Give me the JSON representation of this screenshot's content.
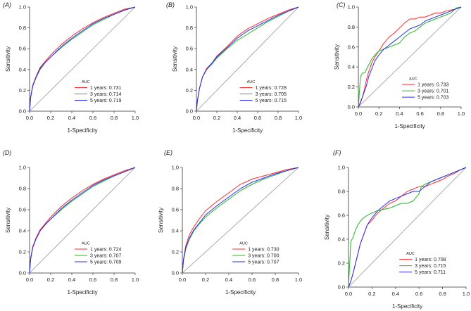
{
  "colors": {
    "y1": "#ff2a2a",
    "y3": "#22bb22",
    "y5": "#2a2aff",
    "diag": "#999999",
    "axis": "#333333"
  },
  "chart_data": [
    {
      "type": "line",
      "panel_label": "(A)",
      "xlabel": "1-Specificity",
      "ylabel": "Sensitivity",
      "xlim": [
        0,
        1
      ],
      "ylim": [
        0,
        1
      ],
      "xticks": [
        "0.0",
        "0.2",
        "0.4",
        "0.6",
        "0.8",
        "1.0"
      ],
      "yticks": [
        "0.0",
        "0.2",
        "0.4",
        "0.6",
        "0.8",
        "1.0"
      ],
      "legend_title": "AUC",
      "legend_position": "bottom-right",
      "series": [
        {
          "name": "1 years: 0.731",
          "color": "y1",
          "x": [
            0,
            0.01,
            0.03,
            0.06,
            0.1,
            0.15,
            0.2,
            0.3,
            0.4,
            0.5,
            0.6,
            0.7,
            0.8,
            0.9,
            1.0
          ],
          "y": [
            0,
            0.14,
            0.25,
            0.33,
            0.42,
            0.48,
            0.54,
            0.64,
            0.72,
            0.79,
            0.85,
            0.9,
            0.94,
            0.98,
            1.0
          ]
        },
        {
          "name": "3 years: 0.714",
          "color": "y3",
          "x": [
            0,
            0.01,
            0.03,
            0.06,
            0.1,
            0.15,
            0.2,
            0.3,
            0.4,
            0.5,
            0.6,
            0.7,
            0.8,
            0.9,
            1.0
          ],
          "y": [
            0,
            0.13,
            0.24,
            0.32,
            0.4,
            0.47,
            0.52,
            0.61,
            0.69,
            0.76,
            0.83,
            0.88,
            0.93,
            0.97,
            1.0
          ]
        },
        {
          "name": "5 years: 0.719",
          "color": "y5",
          "x": [
            0,
            0.01,
            0.03,
            0.06,
            0.1,
            0.15,
            0.2,
            0.3,
            0.4,
            0.5,
            0.6,
            0.7,
            0.8,
            0.9,
            1.0
          ],
          "y": [
            0,
            0.13,
            0.24,
            0.32,
            0.41,
            0.47,
            0.52,
            0.62,
            0.7,
            0.77,
            0.84,
            0.89,
            0.93,
            0.97,
            1.0
          ]
        }
      ]
    },
    {
      "type": "line",
      "panel_label": "(B)",
      "xlabel": "1-Specificity",
      "ylabel": "Sensitivity",
      "xlim": [
        0,
        1
      ],
      "ylim": [
        0,
        1
      ],
      "xticks": [
        "0.0",
        "0.2",
        "0.4",
        "0.6",
        "0.8",
        "1.0"
      ],
      "yticks": [
        "0.0",
        "0.2",
        "0.4",
        "0.6",
        "0.8",
        "1.0"
      ],
      "legend_title": "AUC",
      "legend_position": "bottom-right",
      "series": [
        {
          "name": "1 years: 0.728",
          "color": "y1",
          "x": [
            0,
            0.01,
            0.03,
            0.06,
            0.1,
            0.15,
            0.2,
            0.3,
            0.4,
            0.5,
            0.6,
            0.7,
            0.8,
            0.9,
            1.0
          ],
          "y": [
            0,
            0.1,
            0.22,
            0.33,
            0.41,
            0.46,
            0.53,
            0.62,
            0.72,
            0.79,
            0.84,
            0.89,
            0.93,
            0.97,
            1.0
          ]
        },
        {
          "name": "3 years: 0.705",
          "color": "y3",
          "x": [
            0,
            0.01,
            0.03,
            0.06,
            0.1,
            0.15,
            0.2,
            0.3,
            0.4,
            0.5,
            0.6,
            0.7,
            0.8,
            0.9,
            1.0
          ],
          "y": [
            0,
            0.1,
            0.22,
            0.33,
            0.4,
            0.45,
            0.51,
            0.6,
            0.68,
            0.74,
            0.8,
            0.86,
            0.91,
            0.96,
            1.0
          ]
        },
        {
          "name": "5 years: 0.715",
          "color": "y5",
          "x": [
            0,
            0.01,
            0.03,
            0.06,
            0.1,
            0.15,
            0.2,
            0.3,
            0.4,
            0.5,
            0.6,
            0.7,
            0.8,
            0.9,
            1.0
          ],
          "y": [
            0,
            0.1,
            0.22,
            0.33,
            0.4,
            0.46,
            0.52,
            0.61,
            0.7,
            0.77,
            0.82,
            0.87,
            0.92,
            0.96,
            1.0
          ]
        }
      ]
    },
    {
      "type": "line",
      "panel_label": "(C)",
      "xlabel": "1-Specificity",
      "ylabel": "Sensitivity",
      "xlim": [
        0,
        1
      ],
      "ylim": [
        0,
        1
      ],
      "xticks": [
        "0.0",
        "0.2",
        "0.4",
        "0.6",
        "0.8",
        "1.0"
      ],
      "yticks": [
        "0.0",
        "0.2",
        "0.4",
        "0.6",
        "0.8",
        "1.0"
      ],
      "legend_title": "AUC",
      "legend_position": "bottom-right",
      "series": [
        {
          "name": "1 years: 0.733",
          "color": "y1",
          "x": [
            0,
            0.02,
            0.04,
            0.06,
            0.08,
            0.1,
            0.13,
            0.16,
            0.2,
            0.25,
            0.3,
            0.35,
            0.4,
            0.45,
            0.5,
            0.55,
            0.6,
            0.65,
            0.7,
            0.75,
            0.8,
            0.85,
            0.9,
            0.95,
            1.0
          ],
          "y": [
            0,
            0.05,
            0.1,
            0.18,
            0.28,
            0.35,
            0.44,
            0.5,
            0.56,
            0.64,
            0.7,
            0.74,
            0.79,
            0.84,
            0.88,
            0.88,
            0.9,
            0.9,
            0.92,
            0.94,
            0.94,
            0.96,
            0.97,
            0.98,
            1.0
          ]
        },
        {
          "name": "3 years: 0.701",
          "color": "y3",
          "x": [
            0,
            0.01,
            0.02,
            0.04,
            0.06,
            0.08,
            0.1,
            0.13,
            0.16,
            0.2,
            0.25,
            0.3,
            0.35,
            0.4,
            0.45,
            0.5,
            0.55,
            0.6,
            0.65,
            0.7,
            0.75,
            0.8,
            0.85,
            0.9,
            0.95,
            1.0
          ],
          "y": [
            0,
            0.15,
            0.3,
            0.34,
            0.34,
            0.38,
            0.42,
            0.48,
            0.52,
            0.56,
            0.58,
            0.6,
            0.62,
            0.64,
            0.7,
            0.74,
            0.76,
            0.8,
            0.84,
            0.86,
            0.88,
            0.9,
            0.92,
            0.94,
            0.99,
            1.0
          ]
        },
        {
          "name": "5 years: 0.703",
          "color": "y5",
          "x": [
            0,
            0.02,
            0.04,
            0.06,
            0.08,
            0.1,
            0.13,
            0.16,
            0.2,
            0.25,
            0.3,
            0.35,
            0.4,
            0.45,
            0.5,
            0.55,
            0.6,
            0.65,
            0.7,
            0.75,
            0.8,
            0.85,
            0.9,
            0.95,
            1.0
          ],
          "y": [
            0,
            0.04,
            0.1,
            0.16,
            0.22,
            0.3,
            0.38,
            0.46,
            0.52,
            0.58,
            0.62,
            0.66,
            0.7,
            0.74,
            0.78,
            0.8,
            0.82,
            0.86,
            0.88,
            0.9,
            0.92,
            0.94,
            0.96,
            0.98,
            1.0
          ]
        }
      ]
    },
    {
      "type": "line",
      "panel_label": "(D)",
      "xlabel": "1-Specificity",
      "ylabel": "Sensitivity",
      "xlim": [
        0,
        1
      ],
      "ylim": [
        0,
        1
      ],
      "xticks": [
        "0.0",
        "0.2",
        "0.4",
        "0.6",
        "0.8",
        "1.0"
      ],
      "yticks": [
        "0.0",
        "0.2",
        "0.4",
        "0.6",
        "0.8",
        "1.0"
      ],
      "legend_title": "AUC",
      "legend_position": "bottom-right",
      "series": [
        {
          "name": "1 years: 0.724",
          "color": "y1",
          "x": [
            0,
            0.01,
            0.03,
            0.06,
            0.1,
            0.15,
            0.2,
            0.3,
            0.4,
            0.5,
            0.6,
            0.7,
            0.8,
            0.9,
            1.0
          ],
          "y": [
            0,
            0.14,
            0.25,
            0.33,
            0.41,
            0.47,
            0.53,
            0.63,
            0.71,
            0.78,
            0.84,
            0.89,
            0.93,
            0.97,
            1.0
          ]
        },
        {
          "name": "3 years: 0.707",
          "color": "y3",
          "x": [
            0,
            0.01,
            0.03,
            0.06,
            0.1,
            0.15,
            0.2,
            0.3,
            0.4,
            0.5,
            0.6,
            0.7,
            0.8,
            0.9,
            1.0
          ],
          "y": [
            0,
            0.13,
            0.24,
            0.32,
            0.4,
            0.46,
            0.51,
            0.6,
            0.68,
            0.75,
            0.82,
            0.87,
            0.92,
            0.96,
            1.0
          ]
        },
        {
          "name": "5 years: 0.709",
          "color": "y5",
          "x": [
            0,
            0.01,
            0.03,
            0.06,
            0.1,
            0.15,
            0.2,
            0.3,
            0.4,
            0.5,
            0.6,
            0.7,
            0.8,
            0.9,
            1.0
          ],
          "y": [
            0,
            0.13,
            0.24,
            0.32,
            0.4,
            0.46,
            0.51,
            0.61,
            0.69,
            0.76,
            0.83,
            0.88,
            0.92,
            0.96,
            1.0
          ]
        }
      ]
    },
    {
      "type": "line",
      "panel_label": "(E)",
      "xlabel": "1-Specificity",
      "ylabel": "Sensitivity",
      "xlim": [
        0,
        1
      ],
      "ylim": [
        0,
        1
      ],
      "xticks": [
        "0.0",
        "0.2",
        "0.4",
        "0.6",
        "0.8",
        "1.0"
      ],
      "yticks": [
        "0.0",
        "0.2",
        "0.4",
        "0.6",
        "0.8",
        "1.0"
      ],
      "legend_title": "AUC",
      "legend_position": "bottom-right",
      "series": [
        {
          "name": "1 years: 0.730",
          "color": "y1",
          "x": [
            0,
            0.01,
            0.03,
            0.06,
            0.1,
            0.15,
            0.2,
            0.3,
            0.4,
            0.5,
            0.6,
            0.7,
            0.8,
            0.9,
            1.0
          ],
          "y": [
            0,
            0.13,
            0.26,
            0.36,
            0.44,
            0.52,
            0.59,
            0.68,
            0.76,
            0.84,
            0.89,
            0.92,
            0.95,
            0.98,
            1.0
          ]
        },
        {
          "name": "3 years: 0.700",
          "color": "y3",
          "x": [
            0,
            0.01,
            0.03,
            0.06,
            0.1,
            0.15,
            0.2,
            0.3,
            0.4,
            0.5,
            0.6,
            0.7,
            0.8,
            0.9,
            1.0
          ],
          "y": [
            0,
            0.12,
            0.23,
            0.32,
            0.4,
            0.47,
            0.53,
            0.62,
            0.7,
            0.78,
            0.84,
            0.89,
            0.93,
            0.97,
            1.0
          ]
        },
        {
          "name": "5 years: 0.707",
          "color": "y5",
          "x": [
            0,
            0.01,
            0.03,
            0.06,
            0.1,
            0.15,
            0.2,
            0.3,
            0.4,
            0.5,
            0.6,
            0.7,
            0.8,
            0.9,
            1.0
          ],
          "y": [
            0,
            0.12,
            0.24,
            0.33,
            0.41,
            0.48,
            0.55,
            0.64,
            0.72,
            0.8,
            0.86,
            0.9,
            0.94,
            0.97,
            1.0
          ]
        }
      ]
    },
    {
      "type": "line",
      "panel_label": "(F)",
      "xlabel": "1-Specificity",
      "ylabel": "Sensitivity",
      "xlim": [
        0,
        1
      ],
      "ylim": [
        0,
        1
      ],
      "xticks": [
        "0.0",
        "0.2",
        "0.4",
        "0.6",
        "0.8",
        "1.0"
      ],
      "yticks": [
        "0.0",
        "0.2",
        "0.4",
        "0.6",
        "0.8",
        "1.0"
      ],
      "legend_title": "AUC",
      "legend_position": "bottom-right",
      "series": [
        {
          "name": "1 years: 0.708",
          "color": "y1",
          "x": [
            0,
            0.02,
            0.04,
            0.06,
            0.08,
            0.1,
            0.13,
            0.16,
            0.2,
            0.25,
            0.3,
            0.35,
            0.4,
            0.45,
            0.5,
            0.55,
            0.6,
            0.65,
            0.7,
            0.75,
            0.8,
            0.85,
            0.9,
            0.95,
            1.0
          ],
          "y": [
            0,
            0.05,
            0.12,
            0.2,
            0.28,
            0.36,
            0.44,
            0.52,
            0.56,
            0.62,
            0.66,
            0.7,
            0.72,
            0.76,
            0.8,
            0.82,
            0.84,
            0.84,
            0.86,
            0.88,
            0.9,
            0.93,
            0.95,
            0.98,
            1.0
          ]
        },
        {
          "name": "3 years: 0.715",
          "color": "y3",
          "x": [
            0,
            0.01,
            0.02,
            0.04,
            0.06,
            0.08,
            0.1,
            0.13,
            0.16,
            0.2,
            0.25,
            0.3,
            0.35,
            0.4,
            0.45,
            0.5,
            0.55,
            0.6,
            0.62,
            0.65,
            0.7,
            0.75,
            0.8,
            0.85,
            0.9,
            0.95,
            1.0
          ],
          "y": [
            0,
            0.2,
            0.38,
            0.42,
            0.48,
            0.52,
            0.55,
            0.58,
            0.6,
            0.62,
            0.64,
            0.65,
            0.66,
            0.68,
            0.7,
            0.7,
            0.72,
            0.78,
            0.84,
            0.86,
            0.88,
            0.9,
            0.92,
            0.94,
            0.96,
            0.98,
            1.0
          ]
        },
        {
          "name": "5 years: 0.711",
          "color": "y5",
          "x": [
            0,
            0.02,
            0.04,
            0.06,
            0.08,
            0.1,
            0.13,
            0.16,
            0.2,
            0.25,
            0.3,
            0.35,
            0.4,
            0.45,
            0.5,
            0.55,
            0.6,
            0.65,
            0.7,
            0.75,
            0.8,
            0.85,
            0.9,
            0.95,
            1.0
          ],
          "y": [
            0,
            0.05,
            0.12,
            0.2,
            0.28,
            0.36,
            0.44,
            0.52,
            0.58,
            0.64,
            0.68,
            0.72,
            0.74,
            0.76,
            0.78,
            0.8,
            0.8,
            0.84,
            0.88,
            0.9,
            0.92,
            0.94,
            0.96,
            0.98,
            1.0
          ]
        }
      ]
    }
  ]
}
